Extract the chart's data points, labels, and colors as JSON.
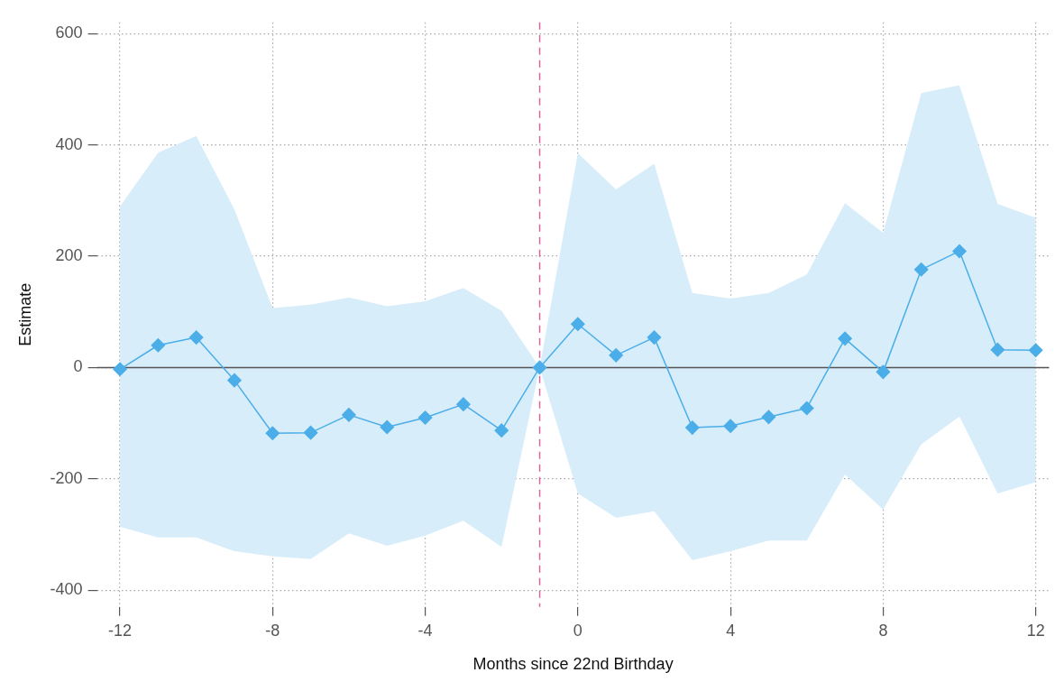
{
  "chart_data": {
    "type": "line",
    "xlabel": "Months since 22nd Birthday",
    "ylabel": "Estimate",
    "x": [
      -12,
      -11,
      -10,
      -9,
      -8,
      -7,
      -6,
      -5,
      -4,
      -3,
      -2,
      -1,
      0,
      1,
      2,
      3,
      4,
      5,
      6,
      7,
      8,
      9,
      10,
      11,
      12
    ],
    "series": [
      {
        "color": "#4baee8",
        "values": [
          -3,
          40,
          54,
          -23,
          -118,
          -117,
          -85,
          -107,
          -90,
          -66,
          -113,
          0,
          78,
          22,
          54,
          -108,
          -105,
          -89,
          -73,
          52,
          -8,
          176,
          209,
          32,
          31
        ],
        "lower": [
          -286,
          -305,
          -305,
          -330,
          -339,
          -344,
          -298,
          -320,
          -302,
          -275,
          -322,
          0,
          -226,
          -270,
          -258,
          -346,
          -330,
          -311,
          -311,
          -192,
          -255,
          -138,
          -88,
          -226,
          -206
        ],
        "upper": [
          289,
          386,
          416,
          284,
          107,
          113,
          126,
          110,
          119,
          143,
          102,
          0,
          385,
          320,
          366,
          134,
          124,
          134,
          167,
          295,
          242,
          493,
          507,
          294,
          269
        ]
      }
    ],
    "xlim": [
      -12.6,
      12.35
    ],
    "xticks": [
      -12,
      -8,
      -4,
      0,
      4,
      8,
      12
    ],
    "ylim": [
      -430,
      620
    ],
    "yticks": [
      -400,
      -200,
      0,
      200,
      400,
      600
    ],
    "ref_lines": [
      {
        "axis": "x",
        "value": -1,
        "color": "#d6679b",
        "line_style": "dashed"
      },
      {
        "axis": "y",
        "value": 0,
        "color": "#555555",
        "line_style": "solid"
      }
    ],
    "grid": true,
    "marker": "diamond",
    "line_style": "solid",
    "legend": false
  }
}
